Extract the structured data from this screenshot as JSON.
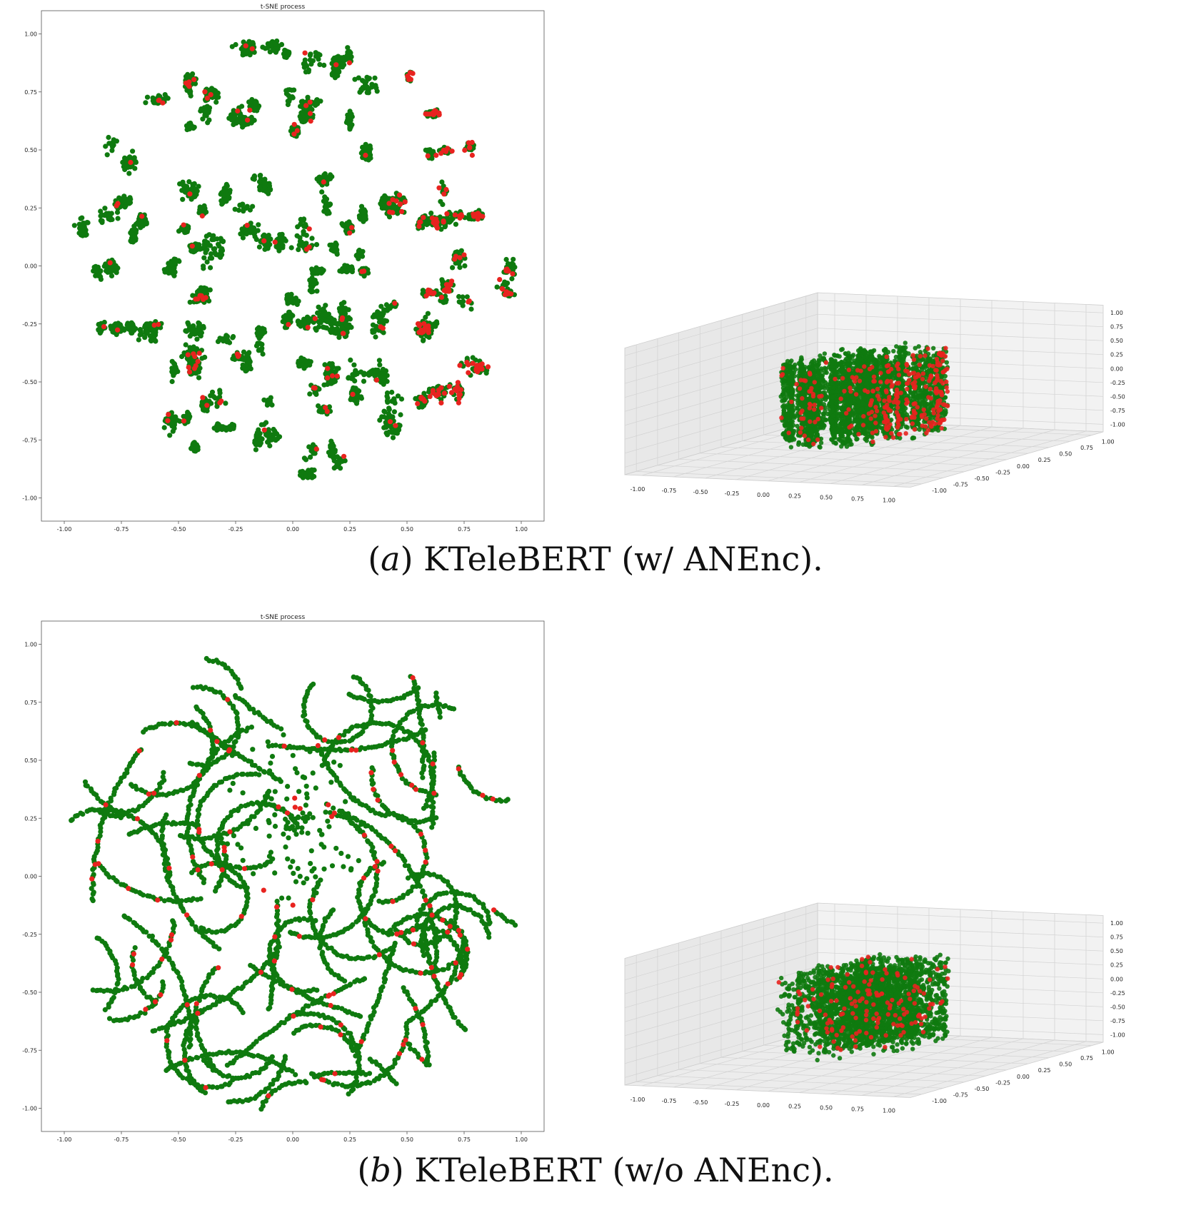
{
  "colors": {
    "majority": "#0f7a0f",
    "minority": "#e8231f",
    "pane": "#f0f0f0",
    "grid": "#d2d2d2"
  },
  "panels": [
    {
      "caption_letter": "a",
      "caption_text": " KTeleBERT (w/ ANEnc).",
      "style": "clusters",
      "seed": 11,
      "chart_data": [
        {
          "type": "scatter",
          "title": "t-SNE process",
          "xlabel": "",
          "ylabel": "",
          "xlim": [
            -1.1,
            1.1
          ],
          "ylim": [
            -1.1,
            1.1
          ],
          "xticks": [
            "-1.00",
            "-0.75",
            "-0.50",
            "-0.25",
            "0.00",
            "0.25",
            "0.50",
            "0.75",
            "1.00"
          ],
          "yticks": [
            "-1.00",
            "-0.75",
            "-0.50",
            "-0.25",
            "0.00",
            "0.25",
            "0.50",
            "0.75",
            "1.00"
          ],
          "grid": false,
          "series": [
            {
              "color": "#0f7a0f"
            },
            {
              "color": "#e8231f"
            }
          ]
        },
        {
          "type": "scatter",
          "projection": "3d",
          "xlim": [
            -1.0,
            1.0
          ],
          "ylim": [
            -1.0,
            1.0
          ],
          "zlim": [
            -1.0,
            1.0
          ],
          "xticks": [
            "-1.00",
            "-0.75",
            "-0.50",
            "-0.25",
            "0.00",
            "0.25",
            "0.50",
            "0.75",
            "1.00"
          ],
          "yticks": [
            "-1.00",
            "-0.75",
            "-0.50",
            "-0.25",
            "0.00",
            "0.25",
            "0.50",
            "0.75",
            "1.00"
          ],
          "zticks": [
            "-1.00",
            "-0.75",
            "-0.50",
            "-0.25",
            "0.00",
            "0.25",
            "0.50",
            "0.75",
            "1.00"
          ],
          "grid": true,
          "series": [
            {
              "color": "#0f7a0f"
            },
            {
              "color": "#e8231f"
            }
          ]
        }
      ]
    },
    {
      "caption_letter": "b",
      "caption_text": " KTeleBERT (w/o ANEnc).",
      "style": "curves",
      "seed": 29,
      "chart_data": [
        {
          "type": "scatter",
          "title": "t-SNE process",
          "xlabel": "",
          "ylabel": "",
          "xlim": [
            -1.1,
            1.1
          ],
          "ylim": [
            -1.1,
            1.1
          ],
          "xticks": [
            "-1.00",
            "-0.75",
            "-0.50",
            "-0.25",
            "0.00",
            "0.25",
            "0.50",
            "0.75",
            "1.00"
          ],
          "yticks": [
            "-1.00",
            "-0.75",
            "-0.50",
            "-0.25",
            "0.00",
            "0.25",
            "0.50",
            "0.75",
            "1.00"
          ],
          "grid": false,
          "series": [
            {
              "color": "#0f7a0f"
            },
            {
              "color": "#e8231f"
            }
          ]
        },
        {
          "type": "scatter",
          "projection": "3d",
          "xlim": [
            -1.0,
            1.0
          ],
          "ylim": [
            -1.0,
            1.0
          ],
          "zlim": [
            -1.0,
            1.0
          ],
          "xticks": [
            "-1.00",
            "-0.75",
            "-0.50",
            "-0.25",
            "0.00",
            "0.25",
            "0.50",
            "0.75",
            "1.00"
          ],
          "yticks": [
            "-1.00",
            "-0.75",
            "-0.50",
            "-0.25",
            "0.00",
            "0.25",
            "0.50",
            "0.75",
            "1.00"
          ],
          "zticks": [
            "-1.00",
            "-0.75",
            "-0.50",
            "-0.25",
            "0.00",
            "0.25",
            "0.50",
            "0.75",
            "1.00"
          ],
          "grid": true,
          "series": [
            {
              "color": "#0f7a0f"
            },
            {
              "color": "#e8231f"
            }
          ]
        }
      ]
    }
  ]
}
